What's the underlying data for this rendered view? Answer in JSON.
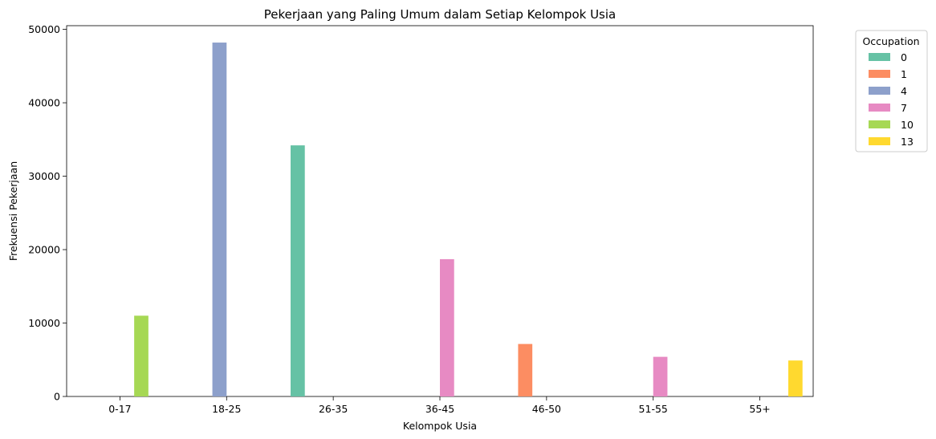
{
  "chart_data": {
    "type": "bar",
    "title": "Pekerjaan yang Paling Umum dalam Setiap Kelompok Usia",
    "xlabel": "Kelompok Usia",
    "ylabel": "Frekuensi Pekerjaan",
    "ylim": [
      0,
      50500
    ],
    "yticks": [
      "0",
      "10000",
      "20000",
      "30000",
      "40000",
      "50000"
    ],
    "categories": [
      "0-17",
      "18-25",
      "26-35",
      "36-45",
      "46-50",
      "51-55",
      "55+"
    ],
    "legend": {
      "title": "Occupation",
      "placement": "outside-top-right"
    },
    "series": [
      {
        "name": "0",
        "color": "#66c2a5",
        "values": [
          null,
          null,
          34200,
          null,
          null,
          null,
          null
        ]
      },
      {
        "name": "1",
        "color": "#fc8d62",
        "values": [
          null,
          null,
          null,
          null,
          7150,
          null,
          null
        ]
      },
      {
        "name": "4",
        "color": "#8da0cb",
        "values": [
          null,
          48200,
          null,
          null,
          null,
          null,
          null
        ]
      },
      {
        "name": "7",
        "color": "#e78ac3",
        "values": [
          null,
          null,
          null,
          18700,
          null,
          5400,
          null
        ]
      },
      {
        "name": "10",
        "color": "#a6d854",
        "values": [
          11000,
          null,
          null,
          null,
          null,
          null,
          null
        ]
      },
      {
        "name": "13",
        "color": "#ffd92f",
        "values": [
          null,
          null,
          null,
          null,
          null,
          null,
          4900
        ]
      }
    ]
  }
}
